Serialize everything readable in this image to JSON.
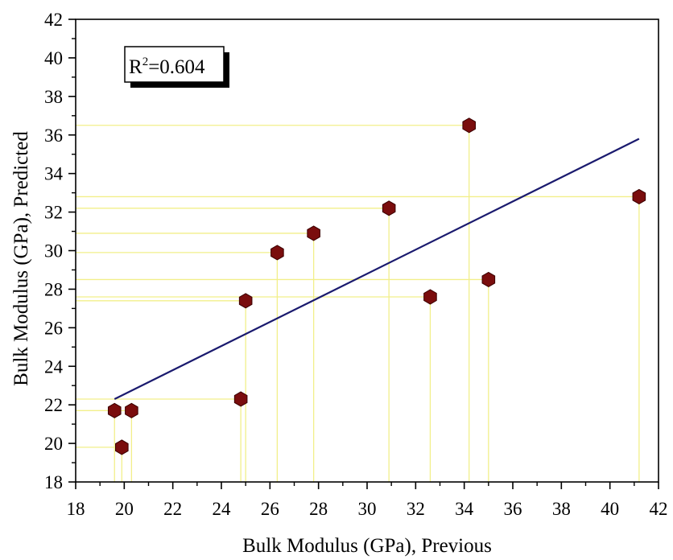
{
  "chart_data": {
    "type": "scatter",
    "xlabel": "Bulk Modulus (GPa), Previous",
    "ylabel": "Bulk Modulus (GPa), Predicted",
    "xlim": [
      18,
      42
    ],
    "ylim": [
      18,
      42
    ],
    "x_ticks": [
      "18",
      "20",
      "22",
      "24",
      "26",
      "28",
      "30",
      "32",
      "34",
      "36",
      "38",
      "40",
      "42"
    ],
    "y_ticks": [
      "18",
      "20",
      "22",
      "24",
      "26",
      "28",
      "30",
      "32",
      "34",
      "36",
      "38",
      "40",
      "42"
    ],
    "annotation": {
      "base": "R",
      "superscript": "2",
      "value": "=0.604"
    },
    "points": [
      {
        "x": 19.6,
        "y": 21.7
      },
      {
        "x": 19.9,
        "y": 19.8
      },
      {
        "x": 20.3,
        "y": 21.7
      },
      {
        "x": 24.8,
        "y": 22.3
      },
      {
        "x": 25.0,
        "y": 27.4
      },
      {
        "x": 26.3,
        "y": 29.9
      },
      {
        "x": 27.8,
        "y": 30.9
      },
      {
        "x": 30.9,
        "y": 32.2
      },
      {
        "x": 32.6,
        "y": 27.6
      },
      {
        "x": 34.2,
        "y": 36.5
      },
      {
        "x": 35.0,
        "y": 28.5
      },
      {
        "x": 41.2,
        "y": 32.8
      }
    ],
    "fit_line": {
      "x_start": 19.6,
      "y_start": 22.3,
      "x_end": 41.2,
      "y_end": 35.8
    },
    "grid": false,
    "colors": {
      "marker": "#7a0d0d",
      "marker_edge": "#3a0000",
      "fit_line": "#1a1a6e",
      "guide_lines": "#f2ef8a",
      "axis": "#000000"
    }
  }
}
